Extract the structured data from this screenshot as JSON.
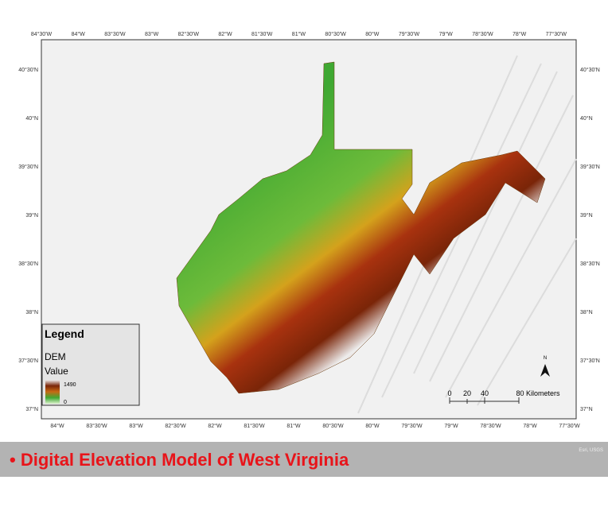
{
  "map": {
    "lon_labels_top": [
      "84°30'W",
      "84°W",
      "83°30'W",
      "83°W",
      "82°30'W",
      "82°W",
      "81°30'W",
      "81°W",
      "80°30'W",
      "80°W",
      "79°30'W",
      "79°W",
      "78°30'W",
      "78°W",
      "77°30'W"
    ],
    "lon_labels_bottom": [
      "84°W",
      "83°30'W",
      "83°W",
      "82°30'W",
      "82°W",
      "81°30'W",
      "81°W",
      "80°30'W",
      "80°W",
      "79°30'W",
      "79°W",
      "78°30'W",
      "78°W",
      "77°30'W"
    ],
    "lat_labels_left": [
      "40°30'N",
      "40°N",
      "39°30'N",
      "39°N",
      "38°30'N",
      "38°N",
      "37°30'N",
      "37°N"
    ],
    "lat_labels_right": [
      "40°30'N",
      "40°N",
      "39°30'N",
      "39°N",
      "38°30'N",
      "38°N",
      "37°30'N",
      "37°N"
    ]
  },
  "legend": {
    "title": "Legend",
    "layer": "DEM",
    "field": "Value",
    "high": 1490,
    "low": 0
  },
  "scale_bar": {
    "labels": [
      "0",
      "20",
      "40",
      "80 Kilometers"
    ]
  },
  "north_arrow": "N",
  "attribution": "Esri, USGS",
  "caption": "• Digital Elevation Model of West Virginia"
}
